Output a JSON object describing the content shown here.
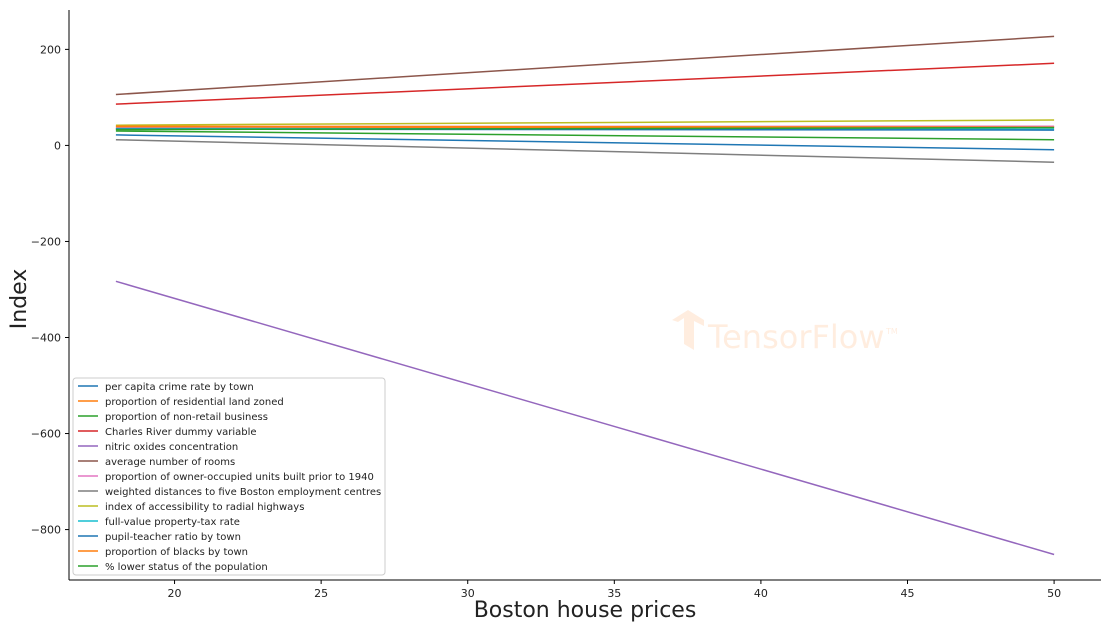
{
  "chart_data": {
    "type": "line",
    "title": "",
    "xlabel": "Boston house prices",
    "ylabel": "Index",
    "xlim": [
      16.4,
      51.6
    ],
    "ylim": [
      -905,
      282
    ],
    "xticks": [
      20,
      25,
      30,
      35,
      40,
      45,
      50
    ],
    "yticks": [
      -800,
      -600,
      -400,
      -200,
      0,
      200
    ],
    "ytick_labels": [
      "−800",
      "−600",
      "−400",
      "−200",
      "0",
      "200"
    ],
    "grid": false,
    "legend_position": "lower-left",
    "watermark": "TensorFlow",
    "series": [
      {
        "name": "per capita crime rate by town",
        "color": "#1f77b4",
        "x": [
          18,
          50
        ],
        "y": [
          22,
          -9
        ]
      },
      {
        "name": "proportion of residential land zoned",
        "color": "#ff7f0e",
        "x": [
          18,
          50
        ],
        "y": [
          36,
          39
        ]
      },
      {
        "name": "proportion of non-retail business",
        "color": "#2ca02c",
        "x": [
          18,
          50
        ],
        "y": [
          30,
          12
        ]
      },
      {
        "name": "Charles River dummy variable",
        "color": "#d62728",
        "x": [
          18,
          50
        ],
        "y": [
          86,
          171
        ]
      },
      {
        "name": "nitric oxides concentration",
        "color": "#9467bd",
        "x": [
          18,
          50
        ],
        "y": [
          -283,
          -852
        ]
      },
      {
        "name": "average number of rooms",
        "color": "#8c564b",
        "x": [
          18,
          50
        ],
        "y": [
          106,
          227
        ]
      },
      {
        "name": "proportion of owner-occupied units built prior to 1940",
        "color": "#e377c2",
        "x": [
          18,
          50
        ],
        "y": [
          39,
          40
        ]
      },
      {
        "name": "weighted distances to five Boston employment centres",
        "color": "#7f7f7f",
        "x": [
          18,
          50
        ],
        "y": [
          12,
          -35
        ]
      },
      {
        "name": "index of accessibility to radial highways",
        "color": "#bcbd22",
        "x": [
          18,
          50
        ],
        "y": [
          42,
          53
        ]
      },
      {
        "name": "full-value property-tax rate",
        "color": "#17becf",
        "x": [
          18,
          50
        ],
        "y": [
          35,
          34
        ]
      },
      {
        "name": "pupil-teacher ratio by town",
        "color": "#1f77b4",
        "x": [
          18,
          50
        ],
        "y": [
          34,
          32
        ]
      },
      {
        "name": "proportion of blacks by town",
        "color": "#ff7f0e",
        "x": [
          18,
          50
        ],
        "y": [
          40,
          38
        ]
      },
      {
        "name": "% lower status of the population",
        "color": "#2ca02c",
        "x": [
          18,
          50
        ],
        "y": [
          33,
          37
        ]
      }
    ]
  }
}
